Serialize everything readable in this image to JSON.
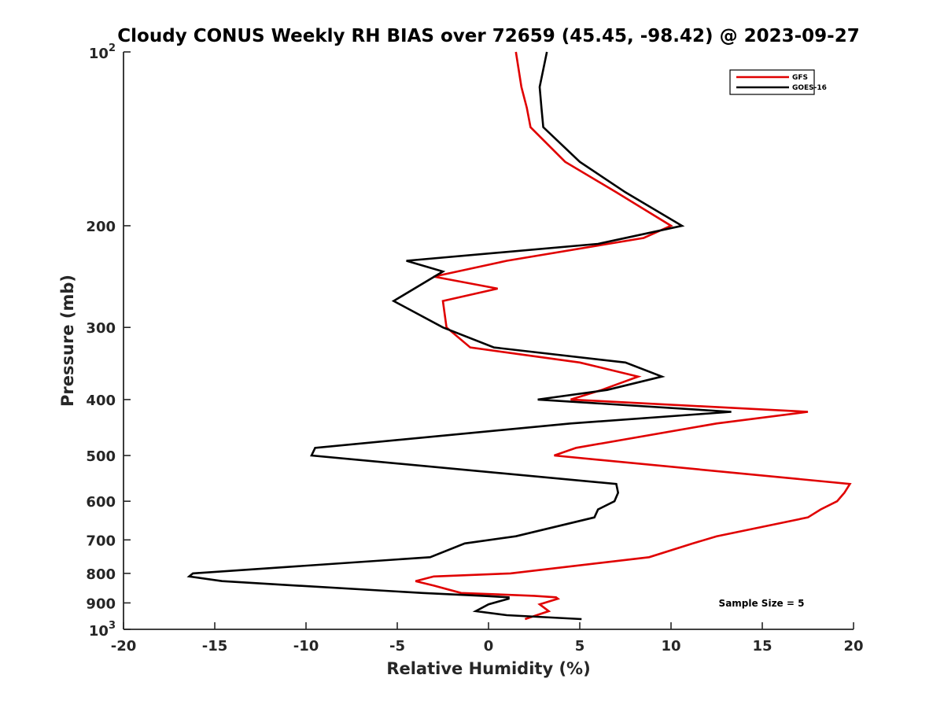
{
  "chart_data": {
    "type": "line",
    "title": "Cloudy CONUS Weekly RH BIAS over 72659 (45.45, -98.42) @ 2023-09-27",
    "xlabel": "Relative Humidity (%)",
    "ylabel": "Pressure (mb)",
    "xlim": [
      -20,
      20
    ],
    "ylim": [
      100,
      1000
    ],
    "y_scale": "log",
    "y_reversed": true,
    "grid": false,
    "legend_position": "top-right",
    "x_ticks": [
      "-20",
      "-15",
      "-10",
      "-5",
      "0",
      "5",
      "10",
      "15",
      "20"
    ],
    "y_ticks": [
      {
        "value": 100,
        "base": "10",
        "exp": "2"
      },
      {
        "value": 200,
        "label": "200"
      },
      {
        "value": 300,
        "label": "300"
      },
      {
        "value": 400,
        "label": "400"
      },
      {
        "value": 500,
        "label": "500"
      },
      {
        "value": 600,
        "label": "600"
      },
      {
        "value": 700,
        "label": "700"
      },
      {
        "value": 800,
        "label": "800"
      },
      {
        "value": 900,
        "label": "900"
      },
      {
        "value": 1000,
        "base": "10",
        "exp": "3"
      }
    ],
    "series": [
      {
        "name": "GFS",
        "color": "#e00000",
        "points": [
          [
            1.5,
            100
          ],
          [
            1.8,
            115
          ],
          [
            2.1,
            125
          ],
          [
            2.3,
            135
          ],
          [
            4.2,
            155
          ],
          [
            7.0,
            175
          ],
          [
            10.0,
            200
          ],
          [
            8.5,
            210
          ],
          [
            1.0,
            230
          ],
          [
            -3.0,
            245
          ],
          [
            0.5,
            257
          ],
          [
            -2.5,
            270
          ],
          [
            -2.3,
            300
          ],
          [
            -1.0,
            325
          ],
          [
            5.0,
            345
          ],
          [
            8.2,
            365
          ],
          [
            6.2,
            385
          ],
          [
            4.5,
            400
          ],
          [
            17.5,
            420
          ],
          [
            12.5,
            440
          ],
          [
            4.8,
            485
          ],
          [
            3.6,
            500
          ],
          [
            19.8,
            560
          ],
          [
            19.5,
            580
          ],
          [
            19.1,
            600
          ],
          [
            18.2,
            620
          ],
          [
            17.5,
            640
          ],
          [
            12.5,
            690
          ],
          [
            11.2,
            710
          ],
          [
            8.8,
            750
          ],
          [
            1.2,
            800
          ],
          [
            -3.0,
            810
          ],
          [
            -4.0,
            825
          ],
          [
            -3.0,
            840
          ],
          [
            -1.5,
            865
          ],
          [
            2.5,
            875
          ],
          [
            3.7,
            880
          ],
          [
            3.8,
            885
          ],
          [
            2.8,
            905
          ],
          [
            3.3,
            930
          ],
          [
            2.0,
            960
          ]
        ]
      },
      {
        "name": "GOES-16",
        "color": "#000000",
        "points": [
          [
            3.2,
            100
          ],
          [
            2.8,
            115
          ],
          [
            2.9,
            125
          ],
          [
            3.0,
            135
          ],
          [
            5.0,
            155
          ],
          [
            7.5,
            175
          ],
          [
            10.6,
            200
          ],
          [
            6.0,
            215
          ],
          [
            -4.5,
            230
          ],
          [
            -2.5,
            240
          ],
          [
            -5.2,
            270
          ],
          [
            -2.5,
            300
          ],
          [
            0.3,
            325
          ],
          [
            7.5,
            345
          ],
          [
            9.5,
            365
          ],
          [
            6.5,
            385
          ],
          [
            2.7,
            400
          ],
          [
            13.3,
            420
          ],
          [
            4.5,
            440
          ],
          [
            -9.5,
            485
          ],
          [
            -9.7,
            500
          ],
          [
            7.0,
            560
          ],
          [
            7.1,
            580
          ],
          [
            6.9,
            600
          ],
          [
            6.0,
            620
          ],
          [
            5.8,
            640
          ],
          [
            1.5,
            690
          ],
          [
            -1.3,
            710
          ],
          [
            -3.2,
            750
          ],
          [
            -16.2,
            800
          ],
          [
            -16.4,
            810
          ],
          [
            -14.6,
            825
          ],
          [
            -10.5,
            840
          ],
          [
            -3.6,
            865
          ],
          [
            -0.3,
            875
          ],
          [
            1.1,
            880
          ],
          [
            1.1,
            885
          ],
          [
            0.0,
            905
          ],
          [
            -0.7,
            930
          ],
          [
            1.0,
            945
          ],
          [
            5.1,
            960
          ]
        ]
      }
    ],
    "annotations": [
      "Sample Size = 5"
    ]
  }
}
